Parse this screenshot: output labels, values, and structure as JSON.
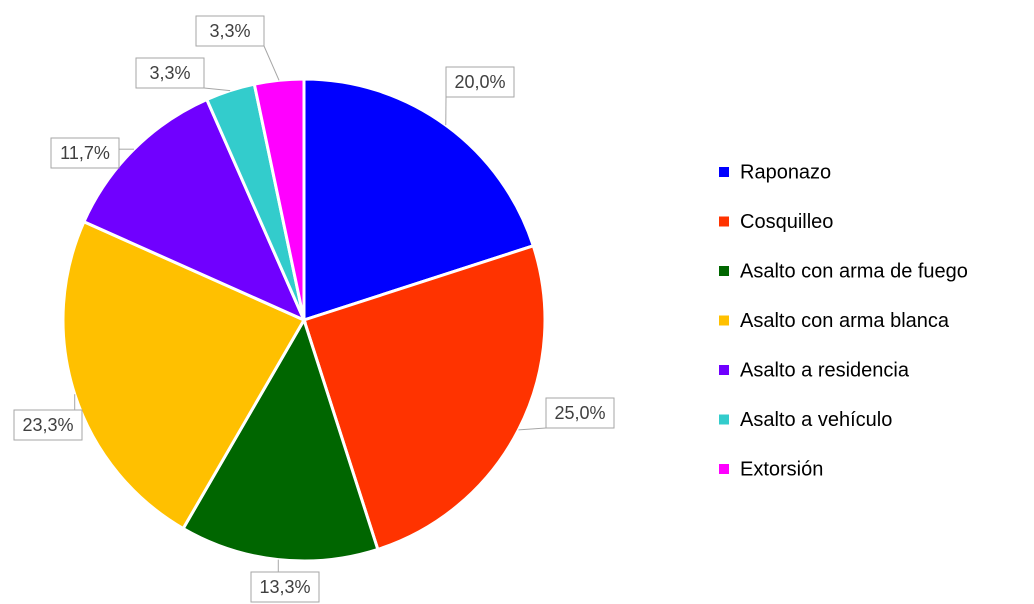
{
  "chart_data": {
    "type": "pie",
    "categories": [
      "Raponazo",
      "Cosquilleo",
      "Asalto con arma de fuego",
      "Asalto con arma blanca",
      "Asalto a residencia",
      "Asalto a vehículo",
      "Extorsión"
    ],
    "values": [
      20.0,
      25.0,
      13.3,
      23.3,
      11.7,
      3.3,
      3.3
    ],
    "value_labels": [
      "20,0%",
      "25,0%",
      "13,3%",
      "23,3%",
      "11,7%",
      "3,3%",
      "3,3%"
    ],
    "colors": [
      "#0000ff",
      "#ff3300",
      "#006600",
      "#ffc000",
      "#7000ff",
      "#33cccc",
      "#ff00ff"
    ],
    "legend": "right"
  }
}
